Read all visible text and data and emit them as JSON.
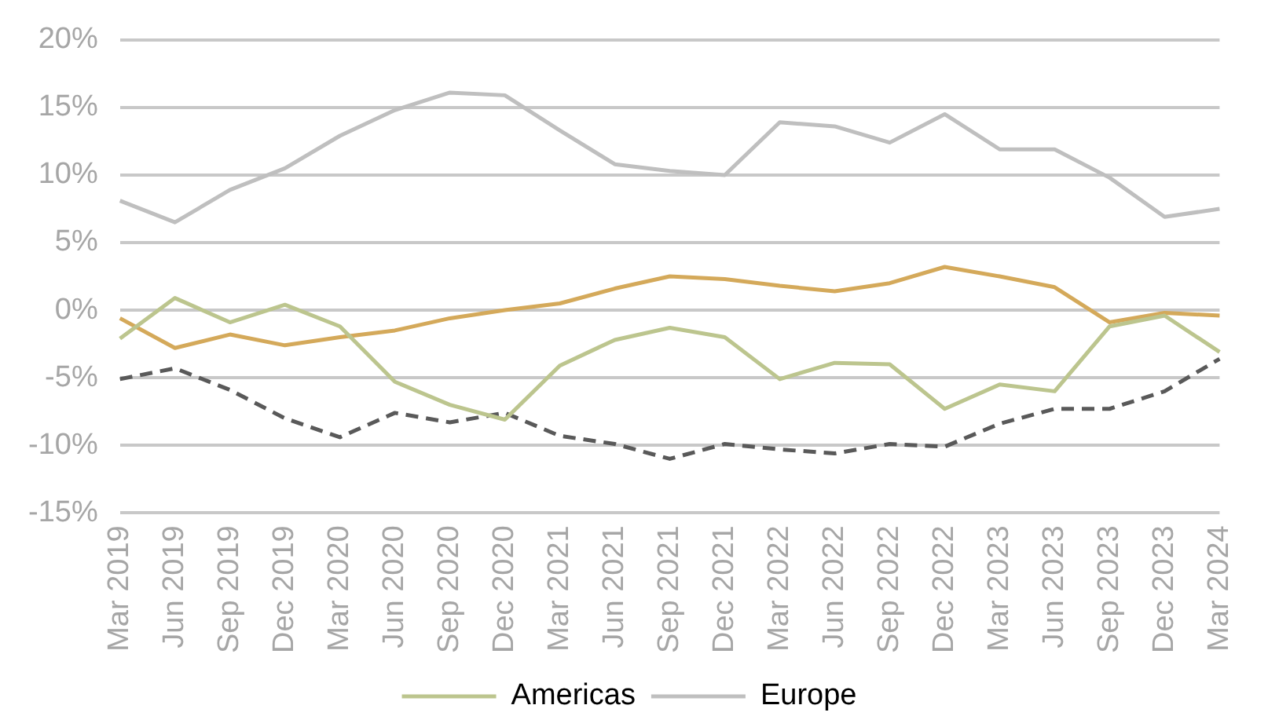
{
  "chart_data": {
    "type": "line",
    "categories": [
      "Mar 2019",
      "Jun 2019",
      "Sep 2019",
      "Dec 2019",
      "Mar 2020",
      "Jun 2020",
      "Sep 2020",
      "Dec 2020",
      "Mar 2021",
      "Jun 2021",
      "Sep 2021",
      "Dec 2021",
      "Mar 2022",
      "Jun 2022",
      "Sep 2022",
      "Dec 2022",
      "Mar 2023",
      "Jun 2023",
      "Sep 2023",
      "Dec 2023",
      "Mar 2024"
    ],
    "series": [
      {
        "name": "Americas",
        "color": "#bcc58e",
        "values": [
          -2.1,
          0.9,
          -0.9,
          0.4,
          -1.2,
          -5.3,
          -7.0,
          -8.1,
          -4.1,
          -2.2,
          -1.3,
          -2.0,
          -5.1,
          -3.9,
          -4.0,
          -7.3,
          -5.5,
          -6.0,
          -1.2,
          -0.4,
          -3.1
        ]
      },
      {
        "name": "Europe",
        "color": "#bfbfbf",
        "values": [
          8.1,
          6.5,
          8.9,
          10.5,
          12.9,
          14.8,
          16.1,
          15.9,
          13.3,
          10.8,
          10.3,
          10.0,
          13.9,
          13.6,
          12.4,
          14.5,
          11.9,
          11.9,
          9.8,
          6.9,
          7.5
        ]
      },
      {
        "color": "#d4a95a",
        "values": [
          -0.6,
          -2.8,
          -1.8,
          -2.6,
          -2.0,
          -1.5,
          -0.6,
          0.0,
          0.5,
          1.6,
          2.5,
          2.3,
          1.8,
          1.4,
          2.0,
          3.2,
          2.5,
          1.7,
          -0.9,
          -0.2,
          -0.4
        ]
      },
      {
        "color": "#595959",
        "line_style": "dashed",
        "values": [
          -5.1,
          -4.3,
          -5.9,
          -8.0,
          -9.4,
          -7.6,
          -8.3,
          -7.6,
          -9.3,
          -9.9,
          -11.0,
          -9.9,
          -10.3,
          -10.6,
          -9.9,
          -10.1,
          -8.4,
          -7.3,
          -7.3,
          -6.0,
          -3.6
        ]
      }
    ],
    "ylim": [
      -15,
      20
    ],
    "yticks": [
      {
        "value": -15,
        "label": "-15%"
      },
      {
        "value": -10,
        "label": "-10%"
      },
      {
        "value": -5,
        "label": "-5%"
      },
      {
        "value": 0,
        "label": "0%"
      },
      {
        "value": 5,
        "label": "5%"
      },
      {
        "value": 10,
        "label": "10%"
      },
      {
        "value": 15,
        "label": "15%"
      },
      {
        "value": 20,
        "label": "20%"
      }
    ],
    "grid": "y",
    "legend": "bottom",
    "marker": "none",
    "line_style": "solid"
  }
}
